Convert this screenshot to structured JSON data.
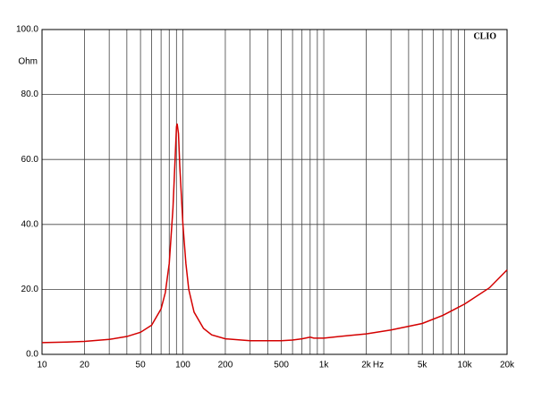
{
  "chart_data": {
    "type": "line",
    "brand": "CLIO",
    "x_unit": "Hz",
    "y_unit": "Ohm",
    "log_x": true,
    "grid": true,
    "xlim": [
      10,
      20000
    ],
    "ylim": [
      0,
      100
    ],
    "xticks": [
      10,
      20,
      50,
      100,
      200,
      500,
      {
        "value": 1000,
        "label": "1k"
      },
      {
        "value": 2000,
        "label": "2k"
      },
      {
        "value": 5000,
        "label": "5k"
      },
      {
        "value": 10000,
        "label": "10k"
      },
      {
        "value": 20000,
        "label": "20k"
      }
    ],
    "xminor": [
      30,
      40,
      60,
      70,
      80,
      90,
      300,
      400,
      600,
      700,
      800,
      900,
      3000,
      4000,
      6000,
      7000,
      8000,
      9000
    ],
    "yticks": [
      {
        "value": 0,
        "label": "0.0"
      },
      {
        "value": 20,
        "label": "20.0"
      },
      {
        "value": 40,
        "label": "40.0"
      },
      {
        "value": 60,
        "label": "60.0"
      },
      {
        "value": 80,
        "label": "80.0"
      },
      {
        "value": 100,
        "label": "100.0"
      }
    ],
    "series": [
      {
        "color": "#d40000",
        "x": [
          10,
          15,
          20,
          30,
          40,
          50,
          60,
          70,
          75,
          80,
          85,
          88,
          90,
          91,
          93,
          95,
          100,
          105,
          110,
          120,
          140,
          160,
          200,
          300,
          500,
          600,
          700,
          800,
          850,
          1000,
          1500,
          2000,
          3000,
          5000,
          7000,
          10000,
          15000,
          20000
        ],
        "values": [
          3.6,
          3.8,
          4.0,
          4.6,
          5.5,
          6.8,
          9,
          14,
          19,
          28,
          45,
          60,
          70,
          71,
          68,
          58,
          40,
          28,
          20,
          13,
          8,
          6,
          4.8,
          4.2,
          4.2,
          4.4,
          4.8,
          5.3,
          5.0,
          5.0,
          5.8,
          6.3,
          7.5,
          9.5,
          12,
          15.5,
          20.5,
          26
        ]
      }
    ]
  }
}
